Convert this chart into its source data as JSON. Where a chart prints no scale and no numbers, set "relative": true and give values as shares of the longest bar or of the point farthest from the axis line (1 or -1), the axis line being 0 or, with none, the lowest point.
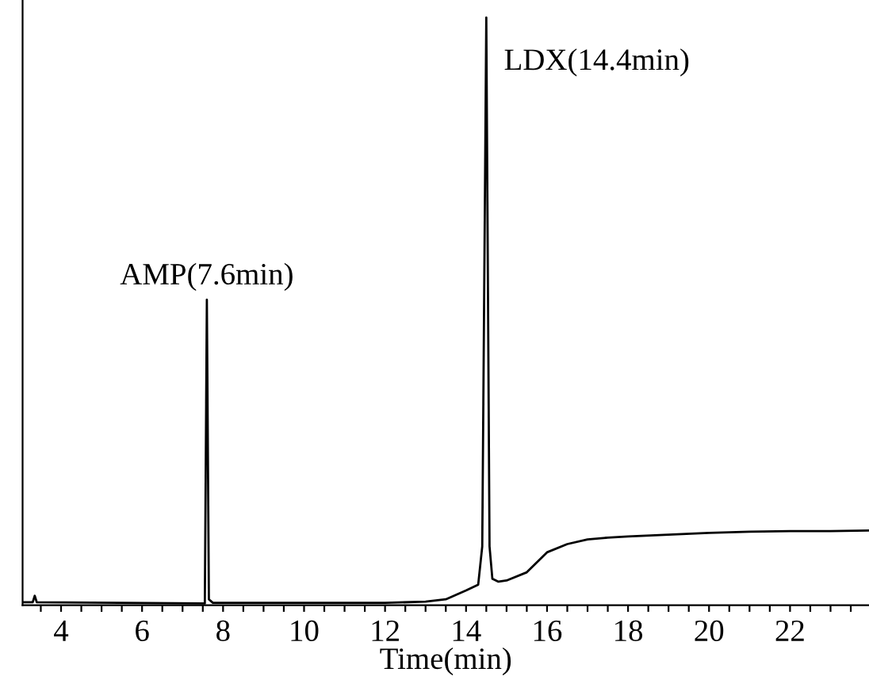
{
  "chart_data": {
    "type": "line",
    "relative": true,
    "xlabel": "Time(min)",
    "xlim": [
      3.05,
      23.95
    ],
    "xticks": [
      {
        "value": 3.5,
        "label": null
      },
      4,
      {
        "value": 4.5,
        "label": null
      },
      {
        "value": 5,
        "label": null
      },
      {
        "value": 5.5,
        "label": null
      },
      6,
      {
        "value": 6.5,
        "label": null
      },
      {
        "value": 7,
        "label": null
      },
      {
        "value": 7.5,
        "label": null
      },
      8,
      {
        "value": 8.5,
        "label": null
      },
      {
        "value": 9,
        "label": null
      },
      {
        "value": 9.5,
        "label": null
      },
      10,
      {
        "value": 10.5,
        "label": null
      },
      {
        "value": 11,
        "label": null
      },
      {
        "value": 11.5,
        "label": null
      },
      12,
      {
        "value": 12.5,
        "label": null
      },
      {
        "value": 13,
        "label": null
      },
      {
        "value": 13.5,
        "label": null
      },
      14,
      {
        "value": 14.5,
        "label": null
      },
      {
        "value": 15,
        "label": null
      },
      {
        "value": 15.5,
        "label": null
      },
      16,
      {
        "value": 16.5,
        "label": null
      },
      {
        "value": 17,
        "label": null
      },
      {
        "value": 17.5,
        "label": null
      },
      18,
      {
        "value": 18.5,
        "label": null
      },
      {
        "value": 19,
        "label": null
      },
      {
        "value": 19.5,
        "label": null
      },
      20,
      {
        "value": 20.5,
        "label": null
      },
      {
        "value": 21,
        "label": null
      },
      {
        "value": 21.5,
        "label": null
      },
      22,
      {
        "value": 22.5,
        "label": null
      },
      {
        "value": 23,
        "label": null
      },
      {
        "value": 23.5,
        "label": null
      }
    ],
    "tick_labels": "x",
    "grid": false,
    "marker": "none",
    "line_style": "solid",
    "x": [
      3.06,
      3.3,
      3.35,
      3.4,
      7.55,
      7.6,
      7.65,
      7.75,
      12,
      13,
      13.5,
      14,
      14.3,
      14.4,
      14.5,
      14.58,
      14.65,
      14.8,
      15,
      15.5,
      16,
      16.5,
      17,
      17.5,
      18,
      19,
      20,
      21,
      22,
      23,
      23.95
    ],
    "series": [
      {
        "color": "#000000",
        "values": [
          0.005,
          0.005,
          0.016,
          0.005,
          0.003,
          0.52,
          0.01,
          0.004,
          0.004,
          0.006,
          0.01,
          0.025,
          0.035,
          0.1,
          1.0,
          0.1,
          0.045,
          0.04,
          0.042,
          0.056,
          0.09,
          0.104,
          0.112,
          0.115,
          0.117,
          0.12,
          0.123,
          0.125,
          0.126,
          0.126,
          0.127
        ]
      }
    ],
    "annotations": [
      {
        "text": "AMP(7.6min)",
        "x": 7.6,
        "y": 0.52
      },
      {
        "text": "LDX(14.4min)",
        "x": 14.5,
        "y": 1.0
      }
    ]
  }
}
